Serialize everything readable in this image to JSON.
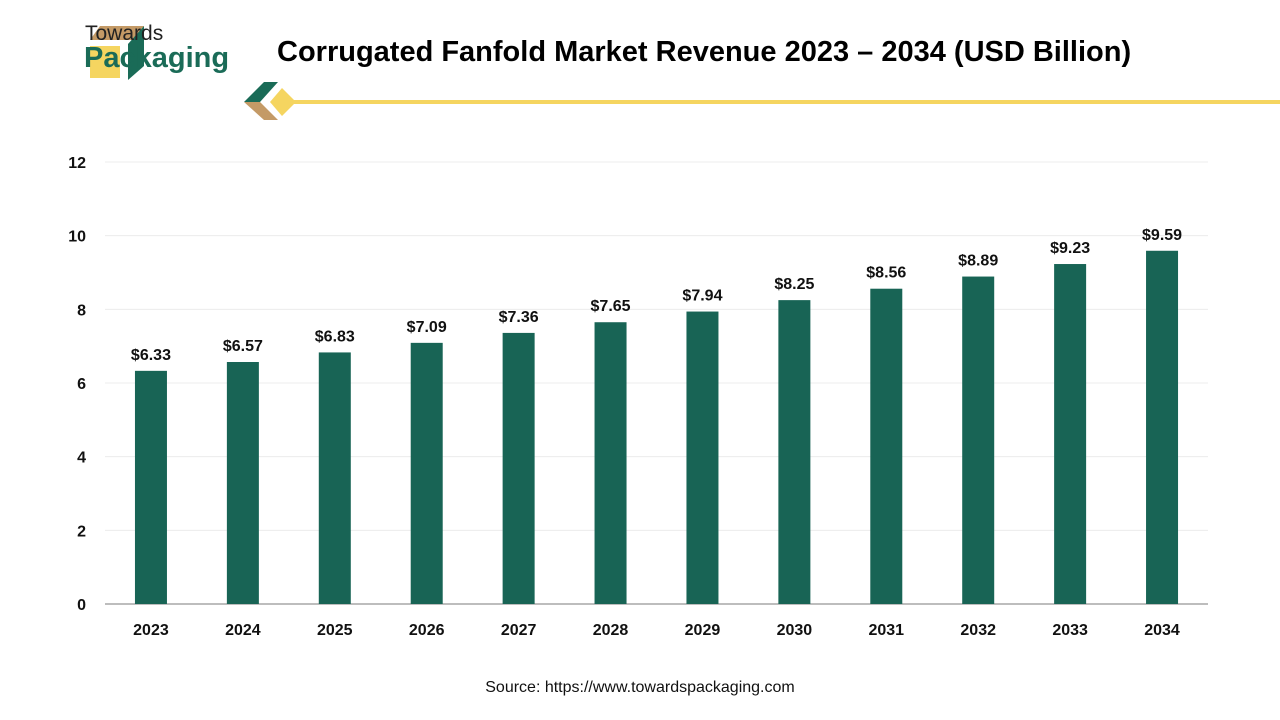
{
  "logo": {
    "line1": "Towards",
    "line2": "Packaging"
  },
  "colors": {
    "bar": "#186455",
    "accent": "#f5d560",
    "brand_green": "#1a6b57",
    "brand_tan": "#c49a66"
  },
  "source": "Source: https://www.towardspackaging.com",
  "chart_data": {
    "type": "bar",
    "title": "Corrugated Fanfold Market Revenue 2023 – 2034 (USD Billion)",
    "categories": [
      "2023",
      "2024",
      "2025",
      "2026",
      "2027",
      "2028",
      "2029",
      "2030",
      "2031",
      "2032",
      "2033",
      "2034"
    ],
    "values": [
      6.33,
      6.57,
      6.83,
      7.09,
      7.36,
      7.65,
      7.94,
      8.25,
      8.56,
      8.89,
      9.23,
      9.59
    ],
    "data_labels": [
      "$6.33",
      "$6.57",
      "$6.83",
      "$7.09",
      "$7.36",
      "$7.65",
      "$7.94",
      "$8.25",
      "$8.56",
      "$8.89",
      "$9.23",
      "$9.59"
    ],
    "yticks": [
      0,
      2,
      4,
      6,
      8,
      10,
      12
    ],
    "ylim": [
      0,
      12
    ],
    "xlabel": "",
    "ylabel": "",
    "grid": true,
    "legend": "none"
  }
}
